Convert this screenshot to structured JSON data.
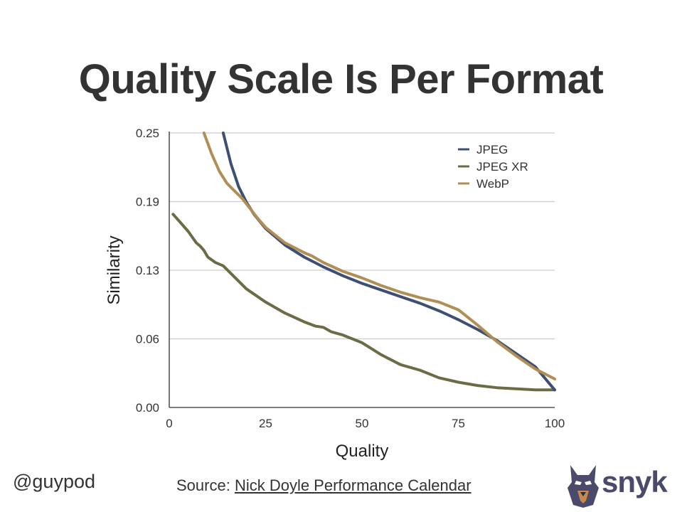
{
  "slide": {
    "title": "Quality Scale Is Per Format",
    "handle": "@guypod",
    "source_prefix": "Source: ",
    "source_link": "Nick Doyle Performance Calendar",
    "logo_text": "snyk"
  },
  "colors": {
    "jpeg": "#3d4f73",
    "jpegxr": "#6b6b45",
    "webp": "#b08e55",
    "grid": "#cccccc",
    "axis": "#555555"
  },
  "chart_data": {
    "type": "line",
    "xlabel": "Quality",
    "ylabel": "Similarity",
    "xlim": [
      0,
      100
    ],
    "ylim": [
      0,
      0.25
    ],
    "xticks": [
      "0",
      "25",
      "50",
      "75",
      "100"
    ],
    "yticks": [
      "0.00",
      "0.06",
      "0.13",
      "0.19",
      "0.25"
    ],
    "grid": true,
    "legend_position": "top-right",
    "series": [
      {
        "name": "JPEG",
        "color": "#3d4f73",
        "points": [
          [
            14,
            0.25
          ],
          [
            16,
            0.222
          ],
          [
            18,
            0.201
          ],
          [
            20,
            0.187
          ],
          [
            22,
            0.176
          ],
          [
            25,
            0.163
          ],
          [
            30,
            0.148
          ],
          [
            35,
            0.137
          ],
          [
            40,
            0.128
          ],
          [
            45,
            0.12
          ],
          [
            50,
            0.113
          ],
          [
            55,
            0.107
          ],
          [
            60,
            0.101
          ],
          [
            65,
            0.095
          ],
          [
            70,
            0.088
          ],
          [
            75,
            0.08
          ],
          [
            80,
            0.071
          ],
          [
            85,
            0.061
          ],
          [
            90,
            0.049
          ],
          [
            95,
            0.037
          ],
          [
            100,
            0.016
          ]
        ]
      },
      {
        "name": "JPEG XR",
        "color": "#6b6b45",
        "points": [
          [
            1,
            0.176
          ],
          [
            3,
            0.168
          ],
          [
            5,
            0.16
          ],
          [
            7,
            0.15
          ],
          [
            8,
            0.147
          ],
          [
            9,
            0.143
          ],
          [
            10,
            0.137
          ],
          [
            12,
            0.132
          ],
          [
            14,
            0.129
          ],
          [
            16,
            0.122
          ],
          [
            18,
            0.115
          ],
          [
            20,
            0.108
          ],
          [
            25,
            0.096
          ],
          [
            30,
            0.086
          ],
          [
            35,
            0.078
          ],
          [
            38,
            0.074
          ],
          [
            40,
            0.073
          ],
          [
            42,
            0.069
          ],
          [
            45,
            0.066
          ],
          [
            50,
            0.059
          ],
          [
            55,
            0.048
          ],
          [
            60,
            0.039
          ],
          [
            65,
            0.034
          ],
          [
            70,
            0.027
          ],
          [
            75,
            0.023
          ],
          [
            80,
            0.02
          ],
          [
            85,
            0.018
          ],
          [
            90,
            0.017
          ],
          [
            95,
            0.016
          ],
          [
            100,
            0.016
          ]
        ]
      },
      {
        "name": "WebP",
        "color": "#b08e55",
        "points": [
          [
            9,
            0.25
          ],
          [
            11,
            0.231
          ],
          [
            13,
            0.215
          ],
          [
            15,
            0.204
          ],
          [
            17,
            0.197
          ],
          [
            19,
            0.19
          ],
          [
            21,
            0.181
          ],
          [
            23,
            0.172
          ],
          [
            25,
            0.164
          ],
          [
            30,
            0.15
          ],
          [
            35,
            0.141
          ],
          [
            37,
            0.138
          ],
          [
            40,
            0.132
          ],
          [
            45,
            0.124
          ],
          [
            50,
            0.118
          ],
          [
            55,
            0.111
          ],
          [
            60,
            0.105
          ],
          [
            65,
            0.1
          ],
          [
            70,
            0.096
          ],
          [
            75,
            0.089
          ],
          [
            80,
            0.075
          ],
          [
            85,
            0.06
          ],
          [
            90,
            0.047
          ],
          [
            95,
            0.035
          ],
          [
            100,
            0.026
          ]
        ]
      }
    ]
  }
}
